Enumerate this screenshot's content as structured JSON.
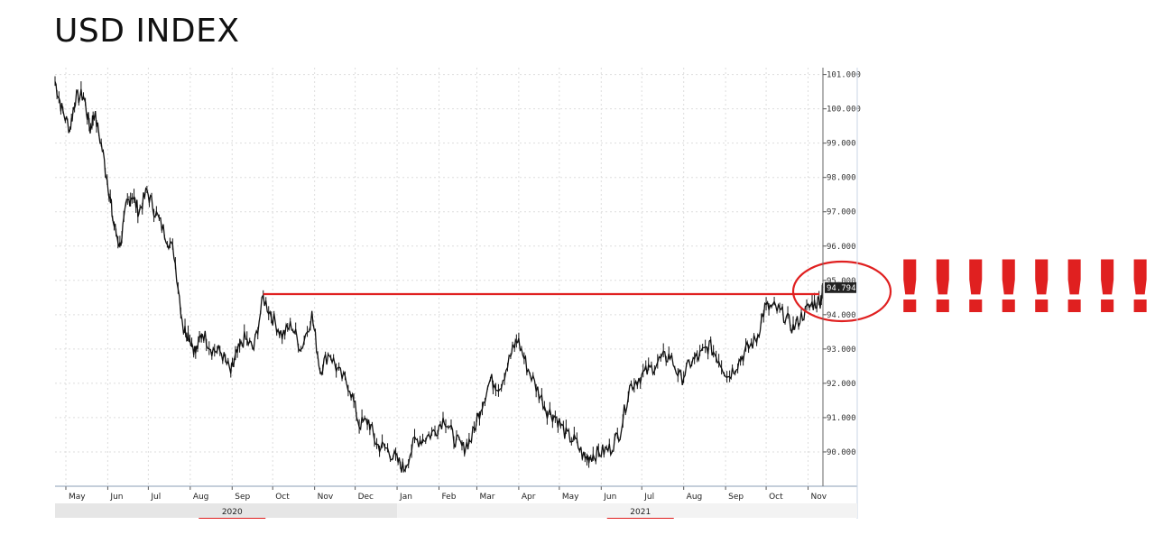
{
  "page": {
    "title": "USD INDEX"
  },
  "chart_data": {
    "type": "line",
    "title": "USD INDEX",
    "xlabel": "",
    "ylabel": "",
    "ylim": [
      89.0,
      101.2
    ],
    "y_ticks": [
      "101.000",
      "100.000",
      "99.000",
      "98.000",
      "97.000",
      "96.000",
      "95.000",
      "94.000",
      "93.000",
      "92.000",
      "91.000",
      "90.000"
    ],
    "y_tick_values": [
      101,
      100,
      99,
      98,
      97,
      96,
      95,
      94,
      93,
      92,
      91,
      90
    ],
    "x_ticks": [
      "May",
      "Jun",
      "Jul",
      "Aug",
      "Sep",
      "Oct",
      "Nov",
      "Dec",
      "Jan",
      "Feb",
      "Mar",
      "Apr",
      "May",
      "Jun",
      "Jul",
      "Aug",
      "Sep",
      "Oct",
      "Nov"
    ],
    "x_tick_dates": [
      "2020-05-01",
      "2020-06-01",
      "2020-07-01",
      "2020-08-01",
      "2020-09-01",
      "2020-10-01",
      "2020-11-01",
      "2020-12-01",
      "2021-01-01",
      "2021-02-01",
      "2021-03-01",
      "2021-04-01",
      "2021-05-01",
      "2021-06-01",
      "2021-07-01",
      "2021-08-01",
      "2021-09-01",
      "2021-10-01",
      "2021-11-01"
    ],
    "xlim": [
      "2020-04-23",
      "2021-11-12"
    ],
    "years": [
      {
        "label": "2020",
        "date": "2020-09-01"
      },
      {
        "label": "2021",
        "date": "2021-06-30"
      }
    ],
    "year_split_date": "2021-01-01",
    "last_price_label": "94.794",
    "last_price": 94.79,
    "resistance_level": 94.6,
    "resistance_start": "2020-09-24",
    "resistance_end": "2021-11-12",
    "annotation": "!!!!!!!!",
    "grid": true,
    "series": [
      {
        "x": [
          "2020-04-23",
          "2020-04-28",
          "2020-05-04",
          "2020-05-08",
          "2020-05-14",
          "2020-05-19",
          "2020-05-22",
          "2020-05-28",
          "2020-06-02",
          "2020-06-05",
          "2020-06-10",
          "2020-06-15",
          "2020-06-19",
          "2020-06-24",
          "2020-06-30",
          "2020-07-06",
          "2020-07-13",
          "2020-07-20",
          "2020-07-27",
          "2020-07-31",
          "2020-08-05",
          "2020-08-10",
          "2020-08-17",
          "2020-08-24",
          "2020-08-31",
          "2020-09-04",
          "2020-09-10",
          "2020-09-17",
          "2020-09-24",
          "2020-10-01",
          "2020-10-08",
          "2020-10-15",
          "2020-10-22",
          "2020-10-30",
          "2020-11-05",
          "2020-11-12",
          "2020-11-19",
          "2020-11-27",
          "2020-12-04",
          "2020-12-11",
          "2020-12-17",
          "2020-12-24",
          "2020-12-31",
          "2021-01-06",
          "2021-01-14",
          "2021-01-21",
          "2021-01-29",
          "2021-02-05",
          "2021-02-12",
          "2021-02-19",
          "2021-02-25",
          "2021-03-04",
          "2021-03-11",
          "2021-03-18",
          "2021-03-26",
          "2021-03-31",
          "2021-04-07",
          "2021-04-15",
          "2021-04-22",
          "2021-04-29",
          "2021-05-06",
          "2021-05-13",
          "2021-05-20",
          "2021-05-25",
          "2021-06-01",
          "2021-06-08",
          "2021-06-15",
          "2021-06-22",
          "2021-06-30",
          "2021-07-07",
          "2021-07-15",
          "2021-07-22",
          "2021-07-30",
          "2021-08-06",
          "2021-08-13",
          "2021-08-20",
          "2021-08-27",
          "2021-09-03",
          "2021-09-10",
          "2021-09-17",
          "2021-09-24",
          "2021-09-30",
          "2021-10-07",
          "2021-10-14",
          "2021-10-21",
          "2021-10-28",
          "2021-11-04",
          "2021-11-10",
          "2021-11-12"
        ],
        "values": [
          100.8,
          100.0,
          99.4,
          100.3,
          100.4,
          99.4,
          99.9,
          98.8,
          97.6,
          96.7,
          96.0,
          97.2,
          97.5,
          97.0,
          97.6,
          97.0,
          96.4,
          95.8,
          93.6,
          93.4,
          92.9,
          93.5,
          93.0,
          92.9,
          92.3,
          92.8,
          93.3,
          93.0,
          94.5,
          93.9,
          93.4,
          93.7,
          93.0,
          94.0,
          92.4,
          92.9,
          92.3,
          91.9,
          90.8,
          90.9,
          90.2,
          90.1,
          89.8,
          89.5,
          90.3,
          90.4,
          90.6,
          91.0,
          90.4,
          90.1,
          90.4,
          91.3,
          92.1,
          91.9,
          92.8,
          93.3,
          92.5,
          91.8,
          91.2,
          91.0,
          90.5,
          90.3,
          89.8,
          89.9,
          90.0,
          90.1,
          90.6,
          91.9,
          92.2,
          92.4,
          92.7,
          92.8,
          92.1,
          92.6,
          92.8,
          93.1,
          92.7,
          92.2,
          92.6,
          93.0,
          93.3,
          94.2,
          94.2,
          94.0,
          93.6,
          94.0,
          94.3,
          94.4,
          94.79
        ]
      }
    ]
  }
}
